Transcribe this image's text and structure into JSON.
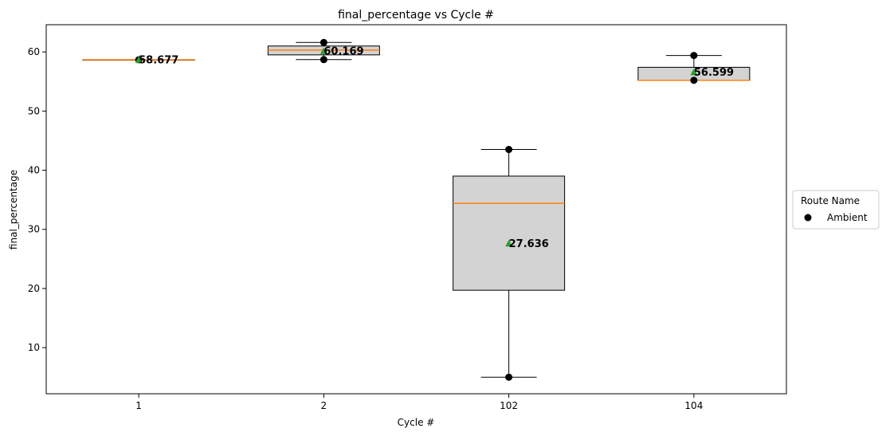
{
  "chart_data": {
    "type": "box",
    "title": "final_percentage vs Cycle #",
    "xlabel": "Cycle #",
    "ylabel": "final_percentage",
    "categories": [
      "1",
      "2",
      "102",
      "104"
    ],
    "ylim": [
      2.2,
      64.6
    ],
    "yticks": [
      10,
      20,
      30,
      40,
      50,
      60
    ],
    "grid": false,
    "legend": {
      "title": "Route Name",
      "position": "right",
      "entries": [
        "Ambient"
      ]
    },
    "boxes": [
      {
        "category": "1",
        "whisker_low": 58.677,
        "q1": 58.677,
        "median": 58.677,
        "q3": 58.677,
        "whisker_high": 58.677,
        "mean": 58.677,
        "mean_label": "58.677",
        "points": [
          58.677
        ]
      },
      {
        "category": "2",
        "whisker_low": 58.7,
        "q1": 59.5,
        "median": 60.3,
        "q3": 61.0,
        "whisker_high": 61.6,
        "mean": 60.169,
        "mean_label": "60.169",
        "points": [
          58.7,
          61.6
        ]
      },
      {
        "category": "102",
        "whisker_low": 5.0,
        "q1": 19.7,
        "median": 34.4,
        "q3": 39.0,
        "whisker_high": 43.5,
        "mean": 27.636,
        "mean_label": "27.636",
        "points": [
          5.0,
          43.5
        ]
      },
      {
        "category": "104",
        "whisker_low": 55.2,
        "q1": 55.2,
        "median": 55.2,
        "q3": 57.4,
        "whisker_high": 59.4,
        "mean": 56.599,
        "mean_label": "56.599",
        "points": [
          55.2,
          59.4
        ]
      }
    ],
    "colors": {
      "box_fill": "#d3d3d3",
      "median": "#ff7f0e",
      "mean_marker": "#2ca02c",
      "points": "#000000"
    }
  }
}
